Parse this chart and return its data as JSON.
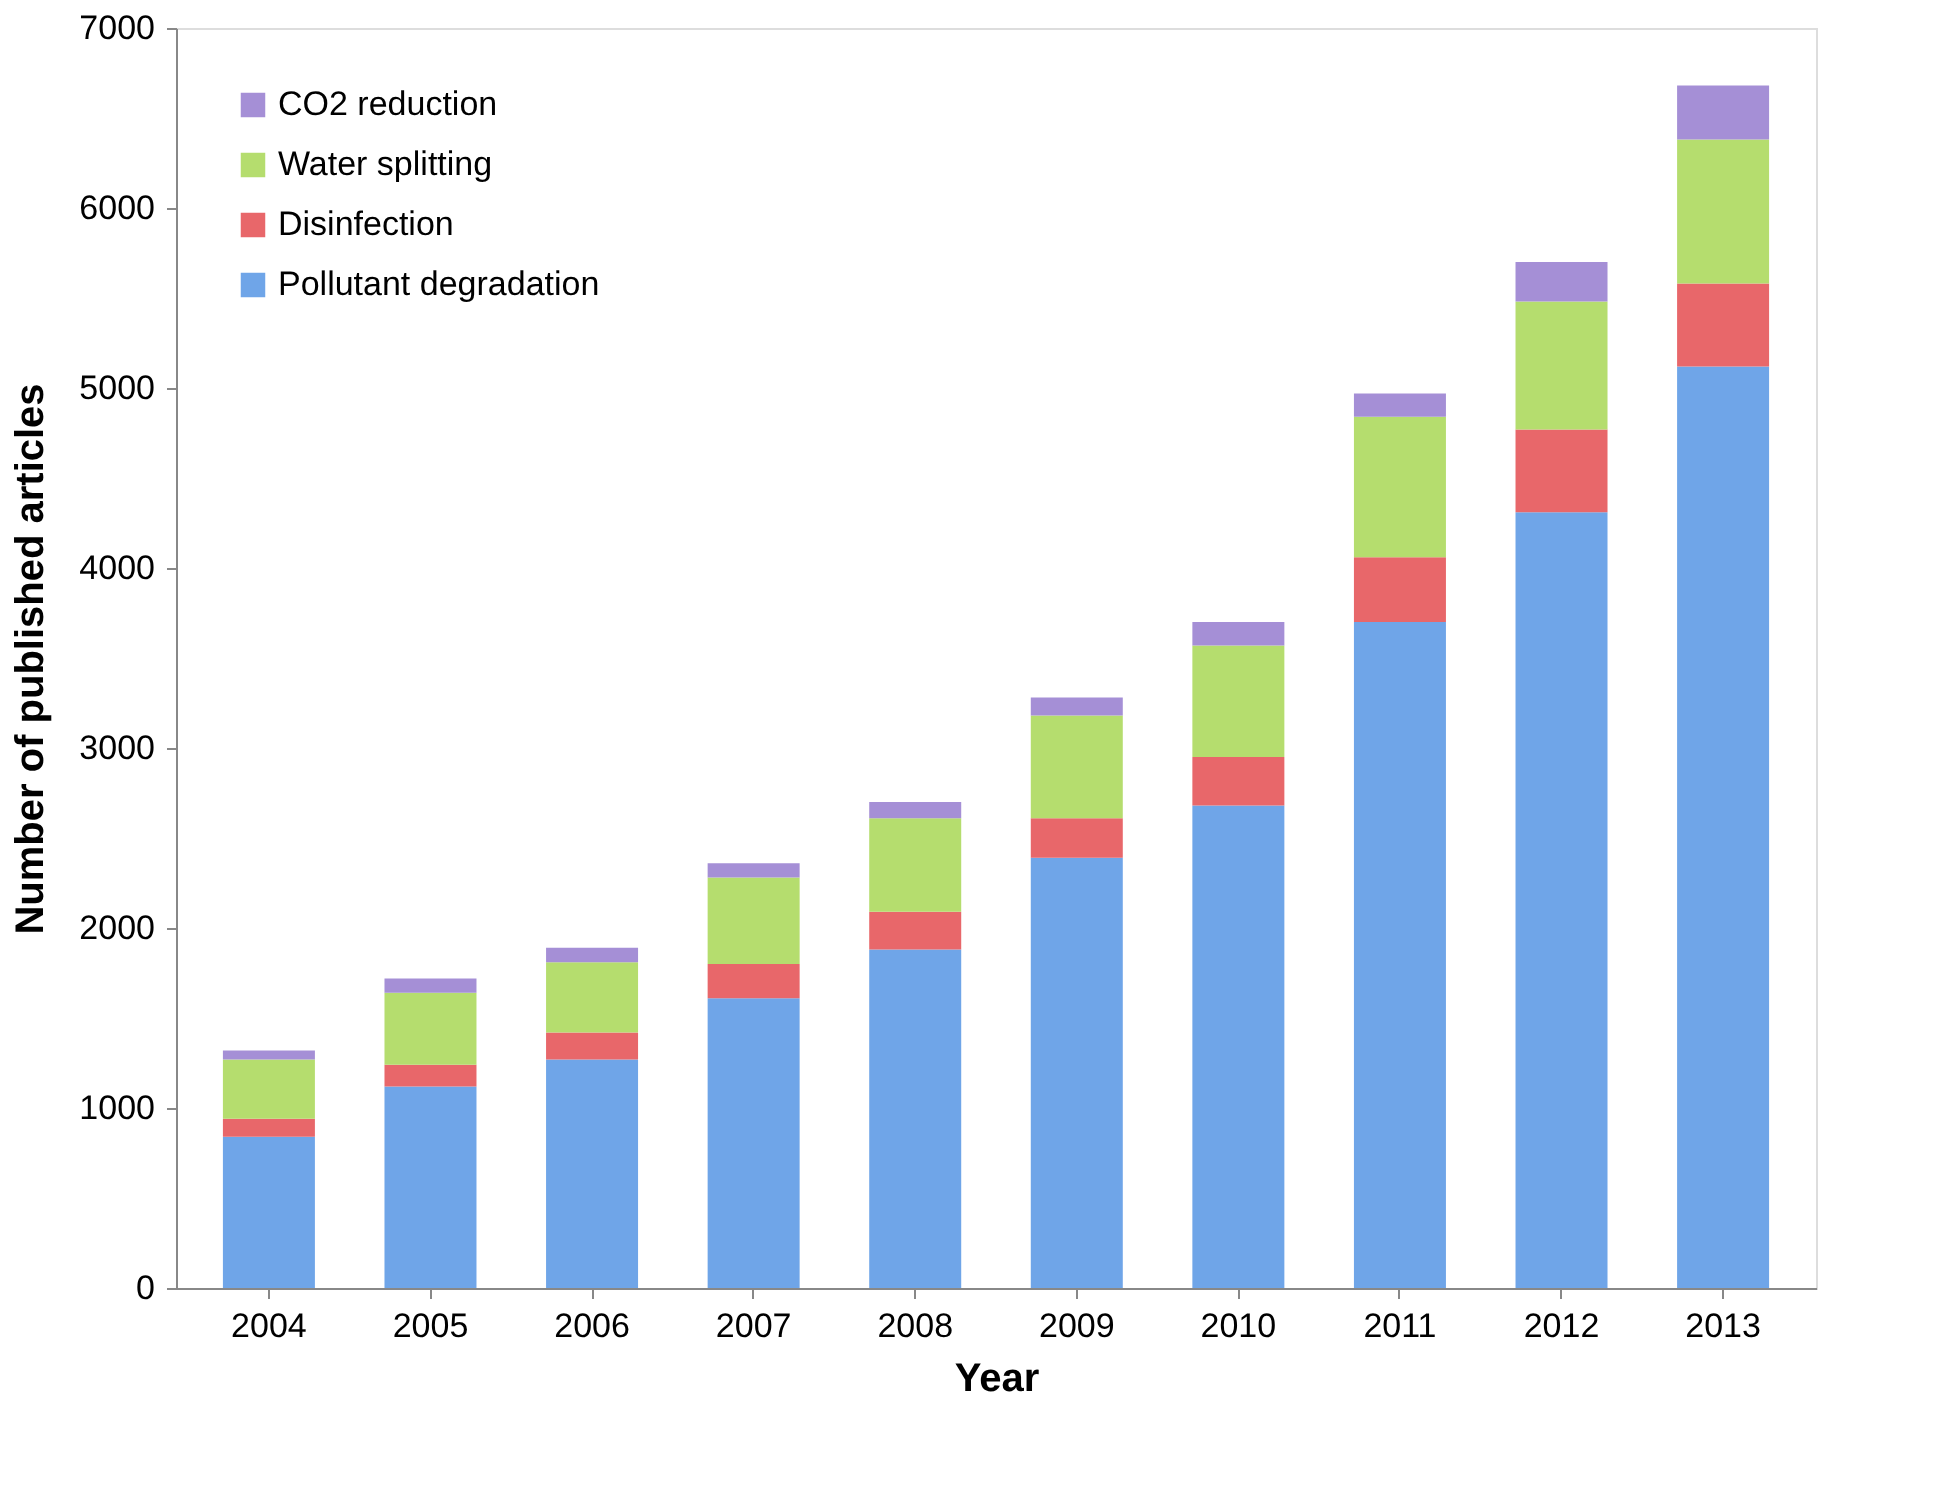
{
  "chart_data": {
    "type": "bar",
    "stacked": true,
    "xlabel": "Year",
    "ylabel": "Number of published articles",
    "categories": [
      "2004",
      "2005",
      "2006",
      "2007",
      "2008",
      "2009",
      "2010",
      "2011",
      "2012",
      "2013"
    ],
    "series": [
      {
        "name": "Pollutant degradation",
        "color": "#6fa5e8",
        "values": [
          840,
          1120,
          1270,
          1610,
          1880,
          2390,
          2680,
          3700,
          4310,
          5120
        ]
      },
      {
        "name": "Disinfection",
        "color": "#e8676a",
        "values": [
          100,
          120,
          150,
          190,
          210,
          220,
          270,
          360,
          460,
          460
        ]
      },
      {
        "name": "Water splitting",
        "color": "#b5dd6e",
        "values": [
          330,
          400,
          390,
          480,
          520,
          570,
          620,
          780,
          710,
          800
        ]
      },
      {
        "name": "CO2 reduction",
        "color": "#a58fd6",
        "values": [
          50,
          80,
          80,
          80,
          90,
          100,
          130,
          130,
          220,
          300
        ]
      }
    ],
    "ylim": [
      0,
      7000
    ],
    "yticks": [
      0,
      1000,
      2000,
      3000,
      4000,
      5000,
      6000,
      7000
    ],
    "grid": false,
    "legend": "top left"
  }
}
